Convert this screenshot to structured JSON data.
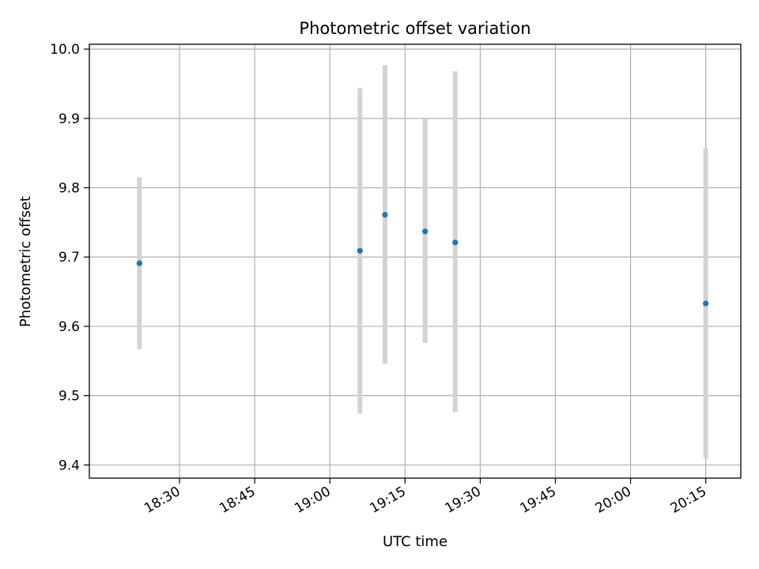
{
  "chart_data": {
    "type": "scatter",
    "title": "Photometric offset variation",
    "xlabel": "UTC time",
    "ylabel": "Photometric offset",
    "x_axis_type": "time",
    "xlim": [
      "18:12",
      "20:22"
    ],
    "ylim": [
      9.381,
      10.007
    ],
    "x_ticks": [
      "18:30",
      "18:45",
      "19:00",
      "19:15",
      "19:30",
      "19:45",
      "20:00",
      "20:15"
    ],
    "y_ticks": [
      9.4,
      9.5,
      9.6,
      9.7,
      9.8,
      9.9,
      10.0
    ],
    "y_tick_labels": [
      "9.4",
      "9.5",
      "9.6",
      "9.7",
      "9.8",
      "9.9",
      "10.0"
    ],
    "grid": true,
    "legend": "none",
    "series": [
      {
        "points": [
          {
            "x": "18:22",
            "y": 9.691,
            "y_low": 9.567,
            "y_high": 9.815
          },
          {
            "x": "19:06",
            "y": 9.709,
            "y_low": 9.474,
            "y_high": 9.944
          },
          {
            "x": "19:11",
            "y": 9.761,
            "y_low": 9.546,
            "y_high": 9.977
          },
          {
            "x": "19:19",
            "y": 9.737,
            "y_low": 9.576,
            "y_high": 9.899
          },
          {
            "x": "19:25",
            "y": 9.721,
            "y_low": 9.476,
            "y_high": 9.968
          },
          {
            "x": "20:15",
            "y": 9.633,
            "y_low": 9.409,
            "y_high": 9.857
          }
        ]
      }
    ],
    "colors": {
      "point": "#1f77b4",
      "errorbar": "#d3d3d3",
      "grid": "#b0b0b0",
      "axis": "#000000"
    }
  }
}
